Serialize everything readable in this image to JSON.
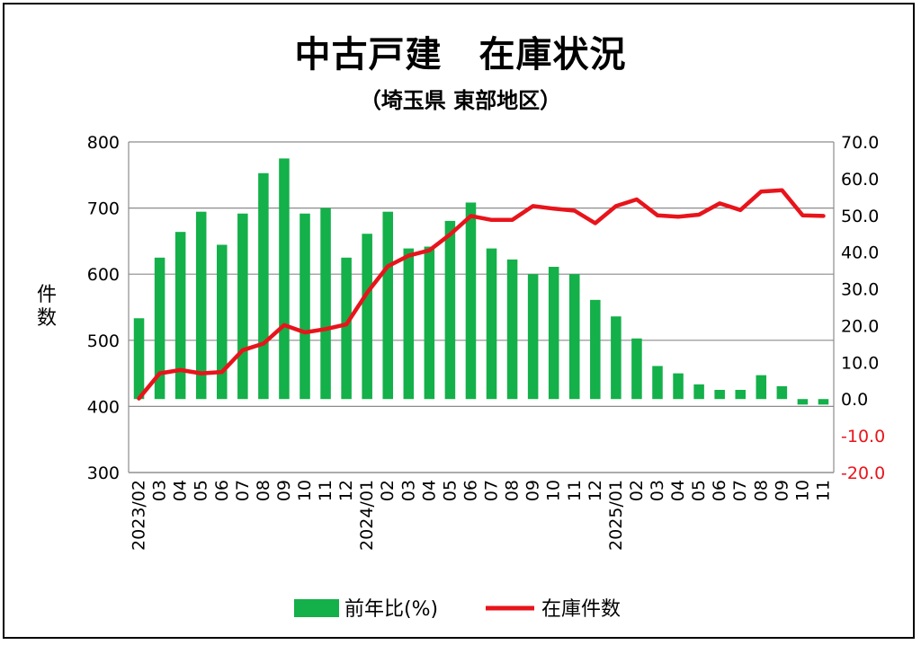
{
  "title": "中古戸建　在庫状況",
  "subtitle": "（埼玉県 東部地区）",
  "chart_data": {
    "type": "bar+line",
    "categories": [
      "2023/02",
      "03",
      "04",
      "05",
      "06",
      "07",
      "08",
      "09",
      "10",
      "11",
      "12",
      "2024/01",
      "02",
      "03",
      "04",
      "05",
      "06",
      "07",
      "08",
      "09",
      "10",
      "11",
      "12",
      "2025/01",
      "02",
      "03",
      "04",
      "05",
      "06",
      "07",
      "08",
      "09",
      "10",
      "11"
    ],
    "series": [
      {
        "name": "前年比(%)",
        "type": "bar",
        "axis": "right",
        "color": "#14b04a",
        "values": [
          22.0,
          38.5,
          45.5,
          51.0,
          42.0,
          50.5,
          61.5,
          65.5,
          50.5,
          52.0,
          38.5,
          45.0,
          51.0,
          41.0,
          41.5,
          48.5,
          53.5,
          41.0,
          38.0,
          34.0,
          36.0,
          34.0,
          27.0,
          22.5,
          16.5,
          9.0,
          7.0,
          4.0,
          2.5,
          2.5,
          6.5,
          3.5,
          -1.5,
          -1.5
        ]
      },
      {
        "name": "在庫件数",
        "type": "line",
        "axis": "left",
        "color": "#e8141b",
        "values": [
          412,
          450,
          455,
          450,
          452,
          485,
          495,
          523,
          512,
          517,
          524,
          572,
          612,
          628,
          636,
          660,
          688,
          682,
          682,
          703,
          699,
          696,
          677,
          703,
          713,
          689,
          687,
          690,
          707,
          697,
          725,
          727,
          689,
          688
        ]
      }
    ],
    "y_left": {
      "label": "件数",
      "min": 300,
      "max": 800,
      "ticks": [
        "300",
        "400",
        "500",
        "600",
        "700",
        "800"
      ]
    },
    "y_right": {
      "min": -20,
      "max": 70,
      "ticks": [
        "70.0",
        "60.0",
        "50.0",
        "40.0",
        "30.0",
        "20.0",
        "10.0",
        "0.0",
        "-10.0",
        "-20.0"
      ],
      "negative_color": "#e8141b"
    },
    "grid": true,
    "legend": {
      "position": "bottom",
      "items": [
        {
          "label": "前年比(%)",
          "kind": "bar",
          "color": "#14b04a"
        },
        {
          "label": "在庫件数",
          "kind": "line",
          "color": "#e8141b"
        }
      ]
    }
  }
}
